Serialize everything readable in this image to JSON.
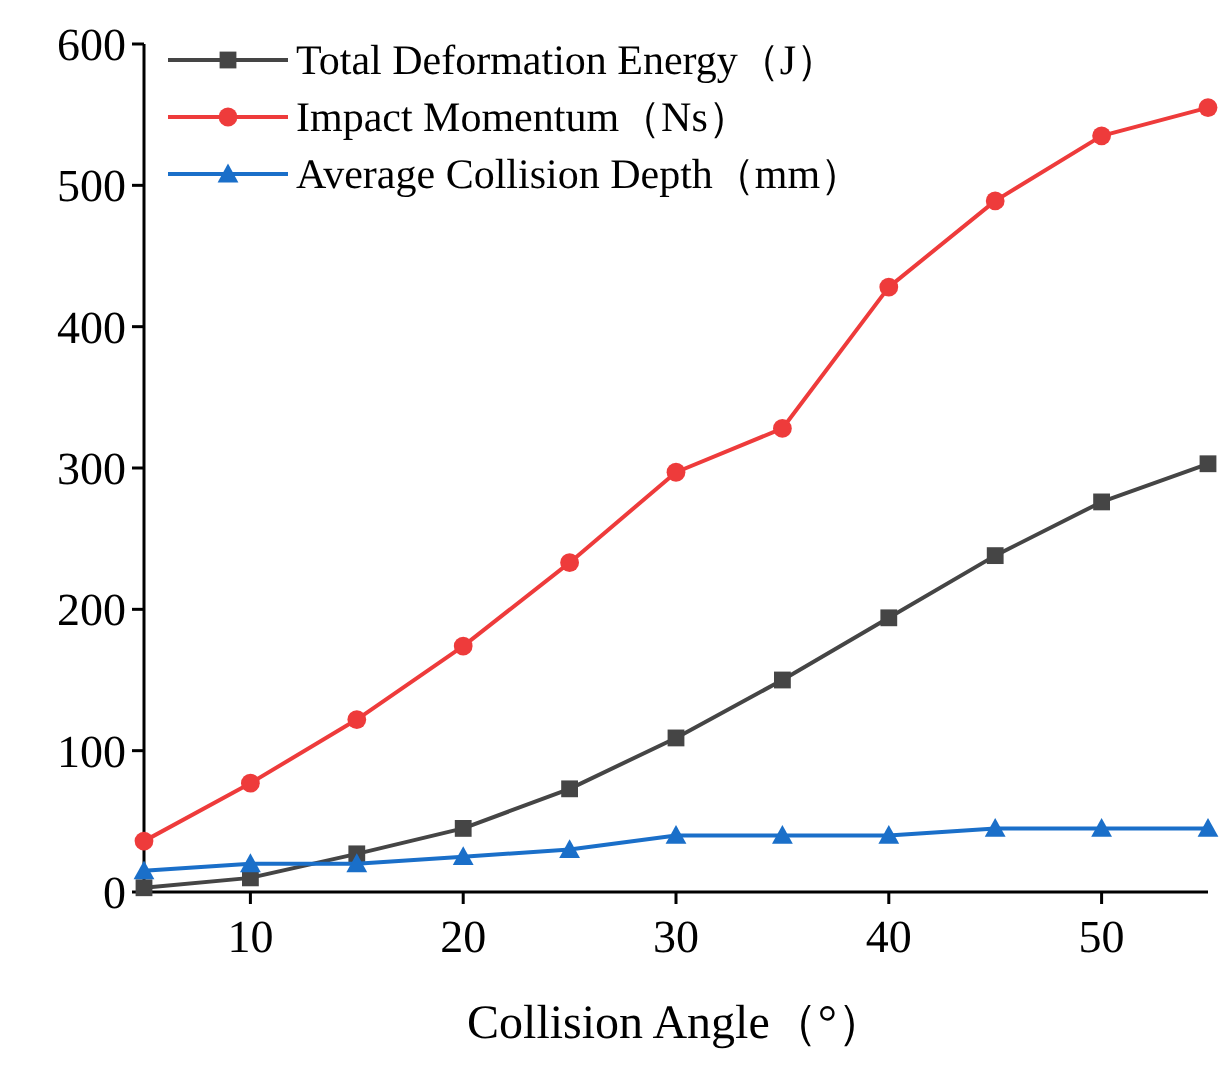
{
  "chart_data": {
    "type": "line",
    "xlabel": "Collision Angle（°）",
    "x": [
      5,
      10,
      15,
      20,
      25,
      30,
      35,
      40,
      45,
      50,
      55
    ],
    "series": [
      {
        "name": "Total Deformation Energy（J）",
        "color": "#454545",
        "marker": "square",
        "values": [
          3,
          10,
          27,
          45,
          73,
          109,
          150,
          194,
          238,
          276,
          303
        ]
      },
      {
        "name": "Impact Momentum（Ns）",
        "color": "#ee3b3b",
        "marker": "circle",
        "values": [
          36,
          77,
          122,
          174,
          233,
          297,
          328,
          428,
          489,
          535,
          555
        ]
      },
      {
        "name": "Average Collision Depth（mm）",
        "color": "#1a6fc9",
        "marker": "triangle",
        "values": [
          15,
          20,
          20,
          25,
          30,
          40,
          40,
          40,
          45,
          45,
          45
        ]
      }
    ],
    "xlim": [
      5,
      55
    ],
    "ylim": [
      0,
      600
    ],
    "xticks": [
      10,
      20,
      30,
      40,
      50
    ],
    "yticks": [
      0,
      100,
      200,
      300,
      400,
      500,
      600
    ],
    "legend": "top left"
  }
}
